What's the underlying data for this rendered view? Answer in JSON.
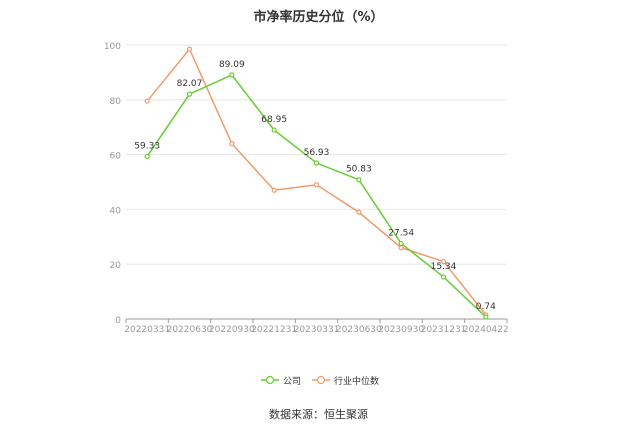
{
  "chart_data": {
    "type": "line",
    "title": "市净率历史分位（%）",
    "categories": [
      "20220331",
      "20220630",
      "20220930",
      "20221231",
      "20230331",
      "20230630",
      "20230930",
      "20231231",
      "20240422"
    ],
    "ylim": [
      0,
      100
    ],
    "yticks": [
      0,
      20,
      40,
      60,
      80,
      100
    ],
    "grid": true,
    "legend": "bottom",
    "series": [
      {
        "name": "公司",
        "color": "#66cc33",
        "values": [
          59.33,
          82.07,
          89.09,
          68.95,
          56.93,
          50.83,
          27.54,
          15.34,
          0.74
        ],
        "labels": [
          "59.33",
          "82.07",
          "89.09",
          "68.95",
          "56.93",
          "50.83",
          "27.54",
          "15.34",
          "0.74"
        ]
      },
      {
        "name": "行业中位数",
        "color": "#f29a6b",
        "values": [
          79.5,
          98.5,
          64.0,
          47.0,
          49.0,
          39.0,
          26.0,
          21.0,
          1.5
        ]
      }
    ],
    "source": "数据来源：恒生聚源"
  }
}
